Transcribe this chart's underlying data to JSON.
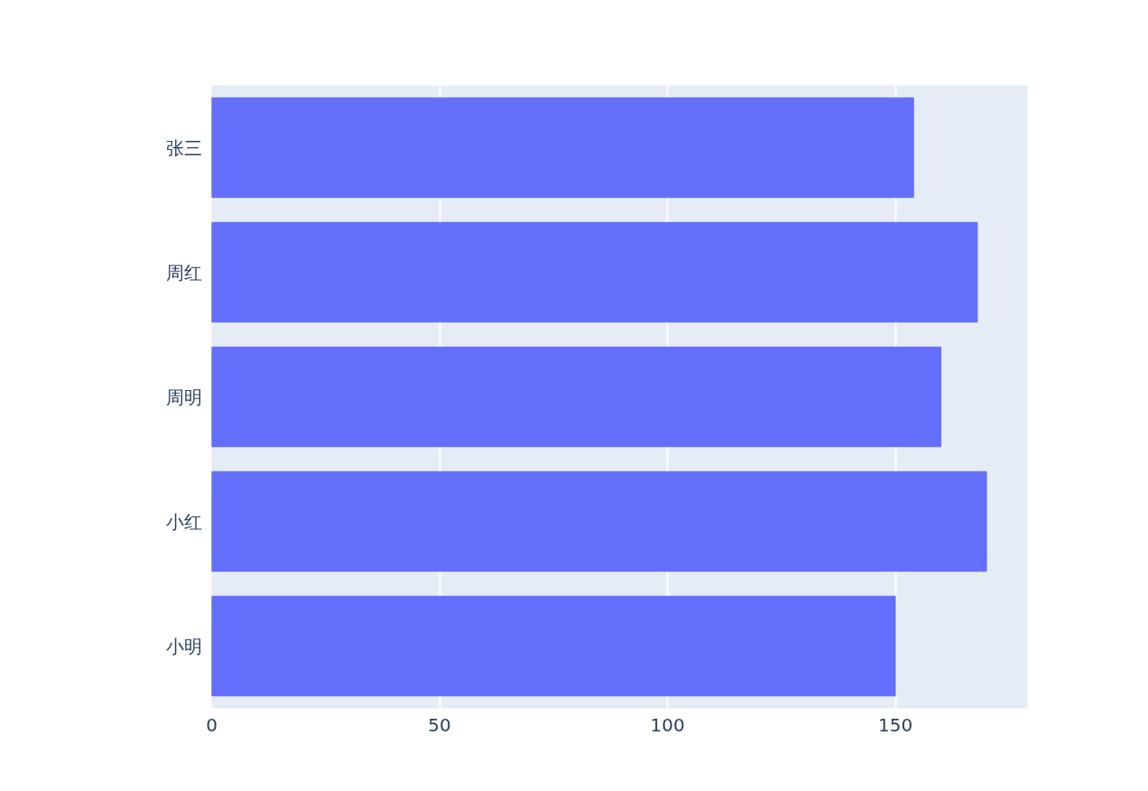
{
  "chart_data": {
    "type": "bar",
    "orientation": "horizontal",
    "categories": [
      "张三",
      "周红",
      "周明",
      "小红",
      "小明"
    ],
    "values": [
      154,
      168,
      160,
      170,
      150
    ],
    "color": "#636efa",
    "xlim": [
      0,
      179
    ],
    "xticks": [
      0,
      50,
      100,
      150
    ],
    "grid": "x"
  }
}
